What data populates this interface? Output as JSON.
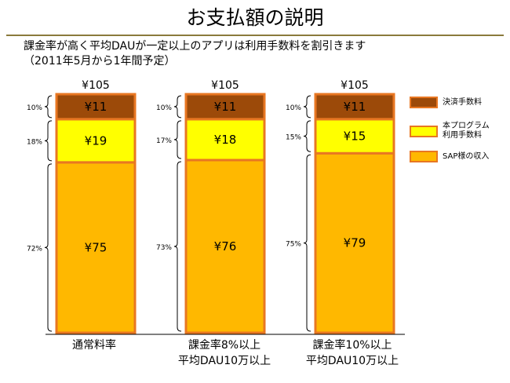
{
  "slide": {
    "title": "お支払額の説明",
    "subtitle_line1": "課金率が高く平均DAUが一定以上のアプリは利用手数料を割引きます",
    "subtitle_line2": "（2011年5月から1年間予定）"
  },
  "chart_data": {
    "type": "bar",
    "stacked": true,
    "categories": [
      [
        "通常料率"
      ],
      [
        "課金率8%以上",
        "平均DAU10万以上"
      ],
      [
        "課金率10%以上",
        "平均DAU10万以上"
      ]
    ],
    "totals": [
      "¥105",
      "¥105",
      "¥105"
    ],
    "series": [
      {
        "name": "SAP様の収入",
        "values": [
          75,
          76,
          79
        ],
        "labels": [
          "¥75",
          "¥76",
          "¥79"
        ],
        "percents": [
          "72%",
          "73%",
          "75%"
        ],
        "color": "#ffb800"
      },
      {
        "name": "本プログラム\n利用手数料",
        "values": [
          19,
          18,
          15
        ],
        "labels": [
          "¥19",
          "¥18",
          "¥15"
        ],
        "percents": [
          "18%",
          "17%",
          "15%"
        ],
        "color": "#ffff00"
      },
      {
        "name": "決済手数料",
        "values": [
          11,
          11,
          11
        ],
        "labels": [
          "¥11",
          "¥11",
          "¥11"
        ],
        "percents": [
          "10%",
          "10%",
          "10%"
        ],
        "color": "#9c4a09"
      }
    ],
    "border_color": "#e87722",
    "ylim": [
      0,
      105
    ],
    "legend_position": "right"
  }
}
